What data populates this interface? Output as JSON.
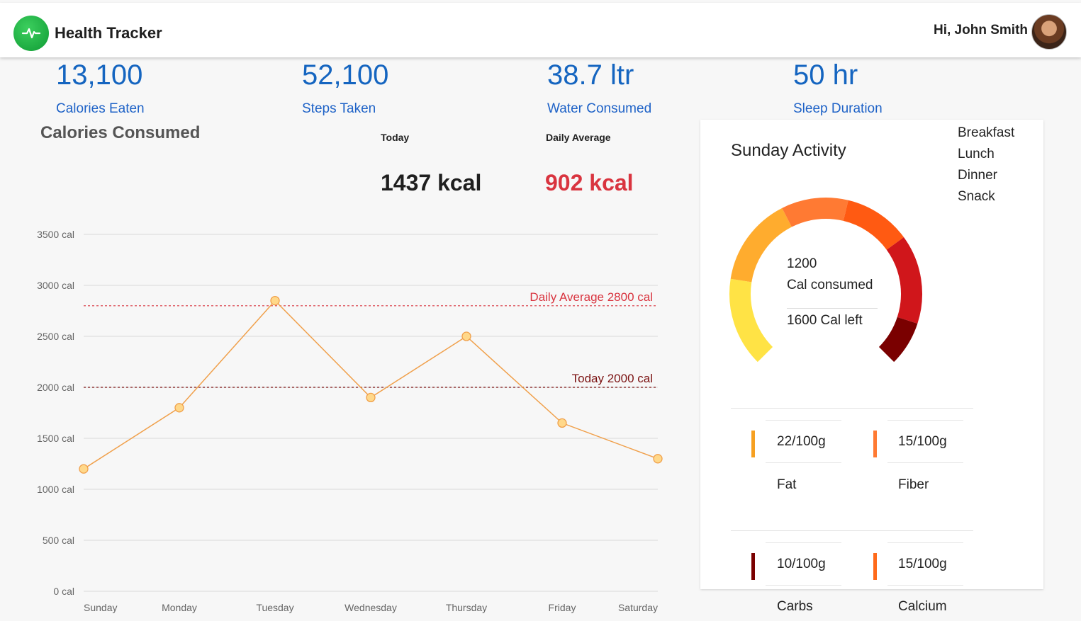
{
  "header": {
    "app_title": "Health Tracker",
    "greeting": "Hi, John Smith",
    "logo_icon": "heartbeat-icon",
    "avatar_icon": "user-avatar"
  },
  "stats": [
    {
      "value": "13,100",
      "label": "Calories Eaten"
    },
    {
      "value": "52,100",
      "label": "Steps Taken"
    },
    {
      "value": "38.7 ltr",
      "label": "Water Consumed"
    },
    {
      "value": "50 hr",
      "label": "Sleep Duration"
    }
  ],
  "calories": {
    "title": "Calories Consumed",
    "today_label": "Today",
    "today_value": "1437 kcal",
    "average_label": "Daily Average",
    "average_value": "902 kcal"
  },
  "chart_data": {
    "type": "line",
    "x": [
      "Sunday",
      "Monday",
      "Tuesday",
      "Wednesday",
      "Thursday",
      "Friday",
      "Saturday"
    ],
    "series": [
      {
        "values": [
          1200,
          1800,
          2850,
          1900,
          2500,
          1650,
          1300
        ]
      }
    ],
    "yticks": [
      "0 cal",
      "500 cal",
      "1000 cal",
      "1500 cal",
      "2000 cal",
      "2500 cal",
      "3000 cal",
      "3500 cal"
    ],
    "ylim": [
      0,
      3500
    ],
    "reference_lines": [
      {
        "label": "Daily Average 2800 cal",
        "value": 2800,
        "color": "#d9343f"
      },
      {
        "label": "Today 2000 cal",
        "value": 2000,
        "color": "#7b1212"
      }
    ],
    "line_color": "#f0a04b",
    "point_color": "#ffd88a",
    "grid": true
  },
  "activity": {
    "title": "Sunday Activity",
    "legend": [
      {
        "label": "Breakfast"
      },
      {
        "label": "Lunch"
      },
      {
        "label": "Dinner"
      },
      {
        "label": "Snack"
      }
    ],
    "gauge": {
      "consumed_value": "1200",
      "consumed_label": "Cal consumed",
      "left_label": "1600 Cal left",
      "segments": [
        {
          "fraction": 0.2,
          "color": "#ffe345"
        },
        {
          "fraction": 0.2,
          "color": "#ffac2e"
        },
        {
          "fraction": 0.15,
          "color": "#ff7a33"
        },
        {
          "fraction": 0.15,
          "color": "#ff5a12"
        },
        {
          "fraction": 0.2,
          "color": "#d0161b"
        },
        {
          "fraction": 0.1,
          "color": "#7a0000"
        }
      ]
    },
    "nutrients": [
      {
        "value": "22/100g",
        "name": "Fat",
        "color": "#f6a021"
      },
      {
        "value": "15/100g",
        "name": "Fiber",
        "color": "#ff7a33"
      },
      {
        "value": "10/100g",
        "name": "Carbs",
        "color": "#7a0000"
      },
      {
        "value": "15/100g",
        "name": "Calcium",
        "color": "#ff6a1a"
      }
    ]
  }
}
